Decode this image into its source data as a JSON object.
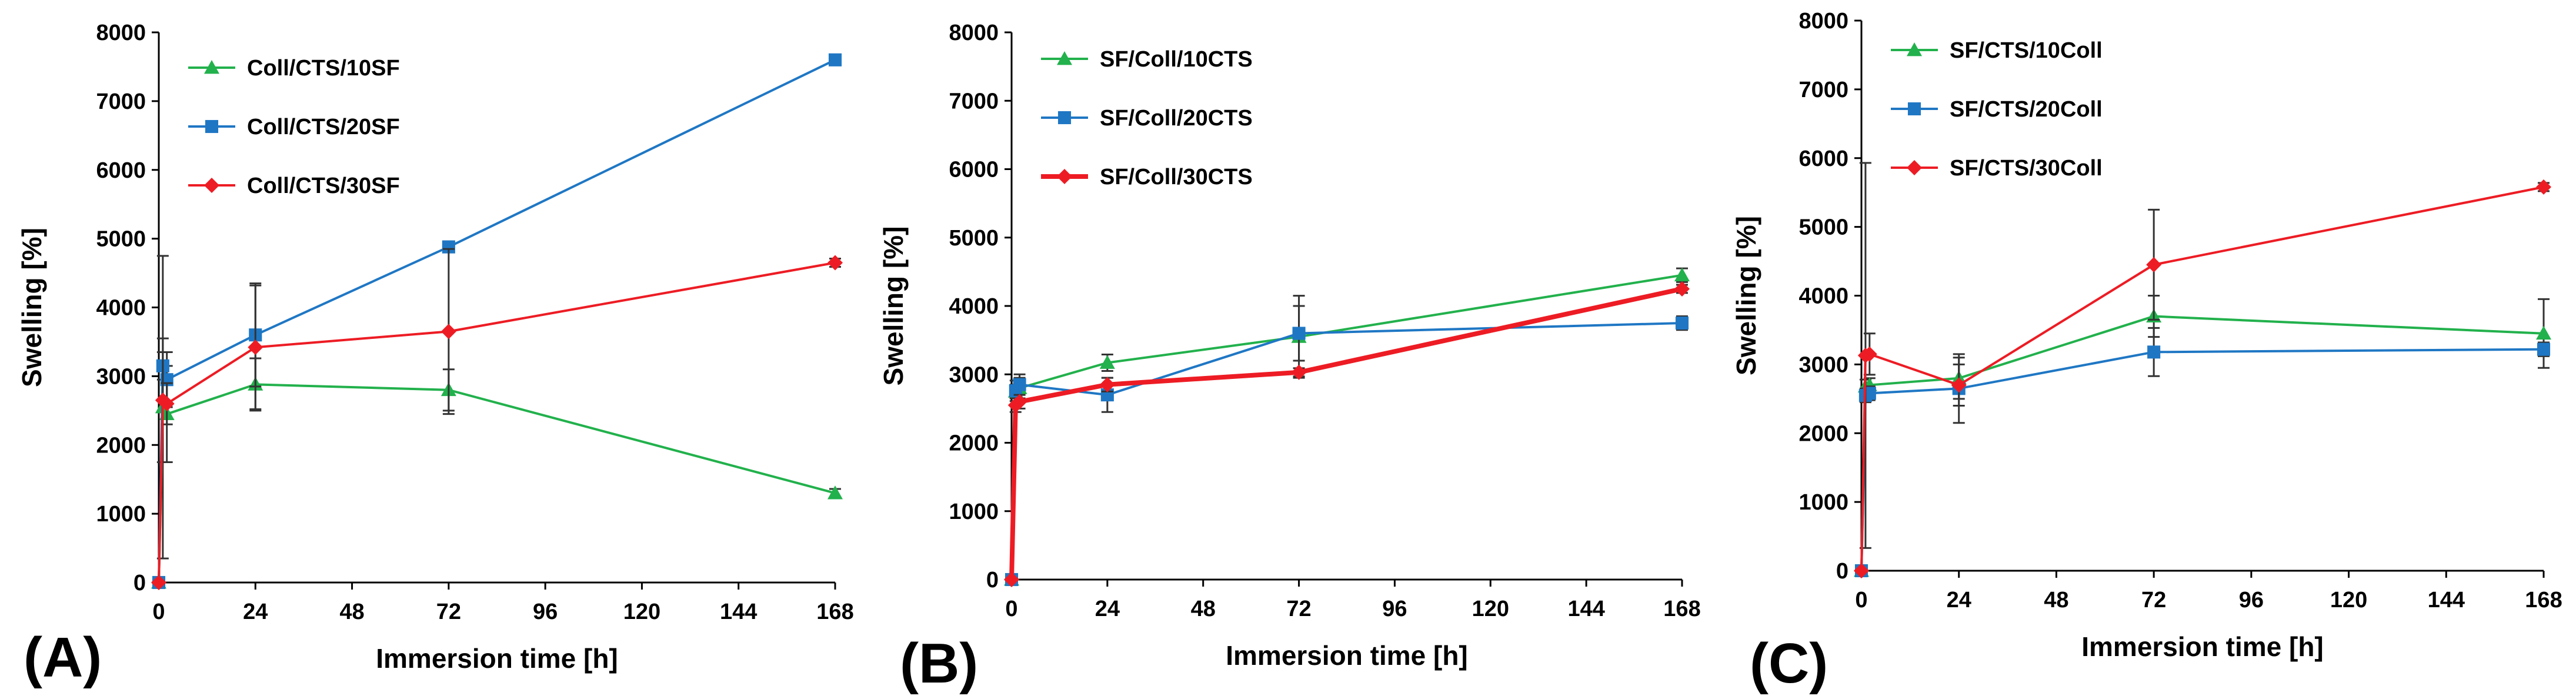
{
  "figure": {
    "panels": [
      "(A)",
      "(B)",
      "(C)"
    ]
  },
  "chart_data": [
    {
      "type": "line",
      "panel_label": "(A)",
      "title": "",
      "xlabel": "Immersion time [h]",
      "ylabel": "Swelling [%]",
      "xlim": [
        0,
        168
      ],
      "ylim": [
        0,
        8000
      ],
      "xticks": [
        0,
        24,
        48,
        72,
        96,
        120,
        144,
        168
      ],
      "yticks": [
        0,
        1000,
        2000,
        3000,
        4000,
        5000,
        6000,
        7000,
        8000
      ],
      "legend": "top-left",
      "series": [
        {
          "name": "Coll/CTS/10SF",
          "color": "#22b14c",
          "marker": "triangle",
          "stroke_width": 2,
          "x": [
            0,
            1,
            2,
            24,
            72,
            168
          ],
          "y": [
            0,
            2550,
            2450,
            2880,
            2800,
            1300
          ],
          "err": [
            0,
            2200,
            700,
            380,
            300,
            60
          ]
        },
        {
          "name": "Coll/CTS/20SF",
          "color": "#1f77c4",
          "marker": "square",
          "stroke_width": 2,
          "x": [
            0,
            1,
            2,
            24,
            72,
            168
          ],
          "y": [
            0,
            3150,
            2950,
            3600,
            4880,
            7600
          ],
          "err": [
            0,
            200,
            400,
            750,
            80,
            60
          ]
        },
        {
          "name": "Coll/CTS/30SF",
          "color": "#ed1c24",
          "marker": "diamond",
          "stroke_width": 2,
          "x": [
            0,
            1,
            2,
            24,
            72,
            168
          ],
          "y": [
            0,
            2650,
            2600,
            3420,
            3650,
            4650
          ],
          "err": [
            0,
            900,
            300,
            900,
            1200,
            60
          ]
        }
      ]
    },
    {
      "type": "line",
      "panel_label": "(B)",
      "title": "",
      "xlabel": "Immersion time [h]",
      "ylabel": "Swelling [%]",
      "xlim": [
        0,
        168
      ],
      "ylim": [
        0,
        8000
      ],
      "xticks": [
        0,
        24,
        48,
        72,
        96,
        120,
        144,
        168
      ],
      "yticks": [
        0,
        1000,
        2000,
        3000,
        4000,
        5000,
        6000,
        7000,
        8000
      ],
      "legend": "top-left",
      "series": [
        {
          "name": "SF/Coll/10CTS",
          "color": "#22b14c",
          "marker": "triangle",
          "stroke_width": 2,
          "x": [
            0,
            1,
            2,
            24,
            72,
            168
          ],
          "y": [
            0,
            2750,
            2800,
            3170,
            3550,
            4450
          ],
          "err": [
            0,
            100,
            150,
            120,
            600,
            100
          ]
        },
        {
          "name": "SF/Coll/20CTS",
          "color": "#1f77c4",
          "marker": "square",
          "stroke_width": 2,
          "x": [
            0,
            1,
            2,
            24,
            72,
            168
          ],
          "y": [
            0,
            2760,
            2850,
            2700,
            3600,
            3750
          ],
          "err": [
            0,
            150,
            150,
            250,
            400,
            100
          ]
        },
        {
          "name": "SF/Coll/30CTS",
          "color": "#ed1c24",
          "marker": "diamond",
          "stroke_width": 4,
          "x": [
            0,
            1,
            2,
            24,
            72,
            168
          ],
          "y": [
            0,
            2550,
            2600,
            2850,
            3030,
            4250
          ],
          "err": [
            0,
            100,
            100,
            100,
            60,
            60
          ]
        }
      ]
    },
    {
      "type": "line",
      "panel_label": "(C)",
      "title": "",
      "xlabel": "Immersion time [h]",
      "ylabel": "Swelling [%]",
      "xlim": [
        0,
        168
      ],
      "ylim": [
        0,
        8000
      ],
      "xticks": [
        0,
        24,
        48,
        72,
        96,
        120,
        144,
        168
      ],
      "yticks": [
        0,
        1000,
        2000,
        3000,
        4000,
        5000,
        6000,
        7000,
        8000
      ],
      "legend": "top-left",
      "series": [
        {
          "name": "SF/CTS/10Coll",
          "color": "#22b14c",
          "marker": "triangle",
          "stroke_width": 2,
          "x": [
            0,
            1,
            2,
            24,
            72,
            168
          ],
          "y": [
            0,
            2680,
            2700,
            2800,
            3700,
            3450
          ],
          "err": [
            0,
            100,
            100,
            300,
            300,
            500
          ]
        },
        {
          "name": "SF/CTS/20Coll",
          "color": "#1f77c4",
          "marker": "square",
          "stroke_width": 2,
          "x": [
            0,
            1,
            2,
            24,
            72,
            168
          ],
          "y": [
            0,
            2550,
            2580,
            2650,
            3180,
            3220
          ],
          "err": [
            0,
            100,
            100,
            500,
            350,
            100
          ]
        },
        {
          "name": "SF/CTS/30Coll",
          "color": "#ed1c24",
          "marker": "diamond",
          "stroke_width": 2,
          "x": [
            0,
            1,
            2,
            24,
            72,
            168
          ],
          "y": [
            0,
            3130,
            3150,
            2700,
            4450,
            5580
          ],
          "err": [
            0,
            2800,
            300,
            300,
            800,
            60
          ]
        }
      ]
    }
  ]
}
